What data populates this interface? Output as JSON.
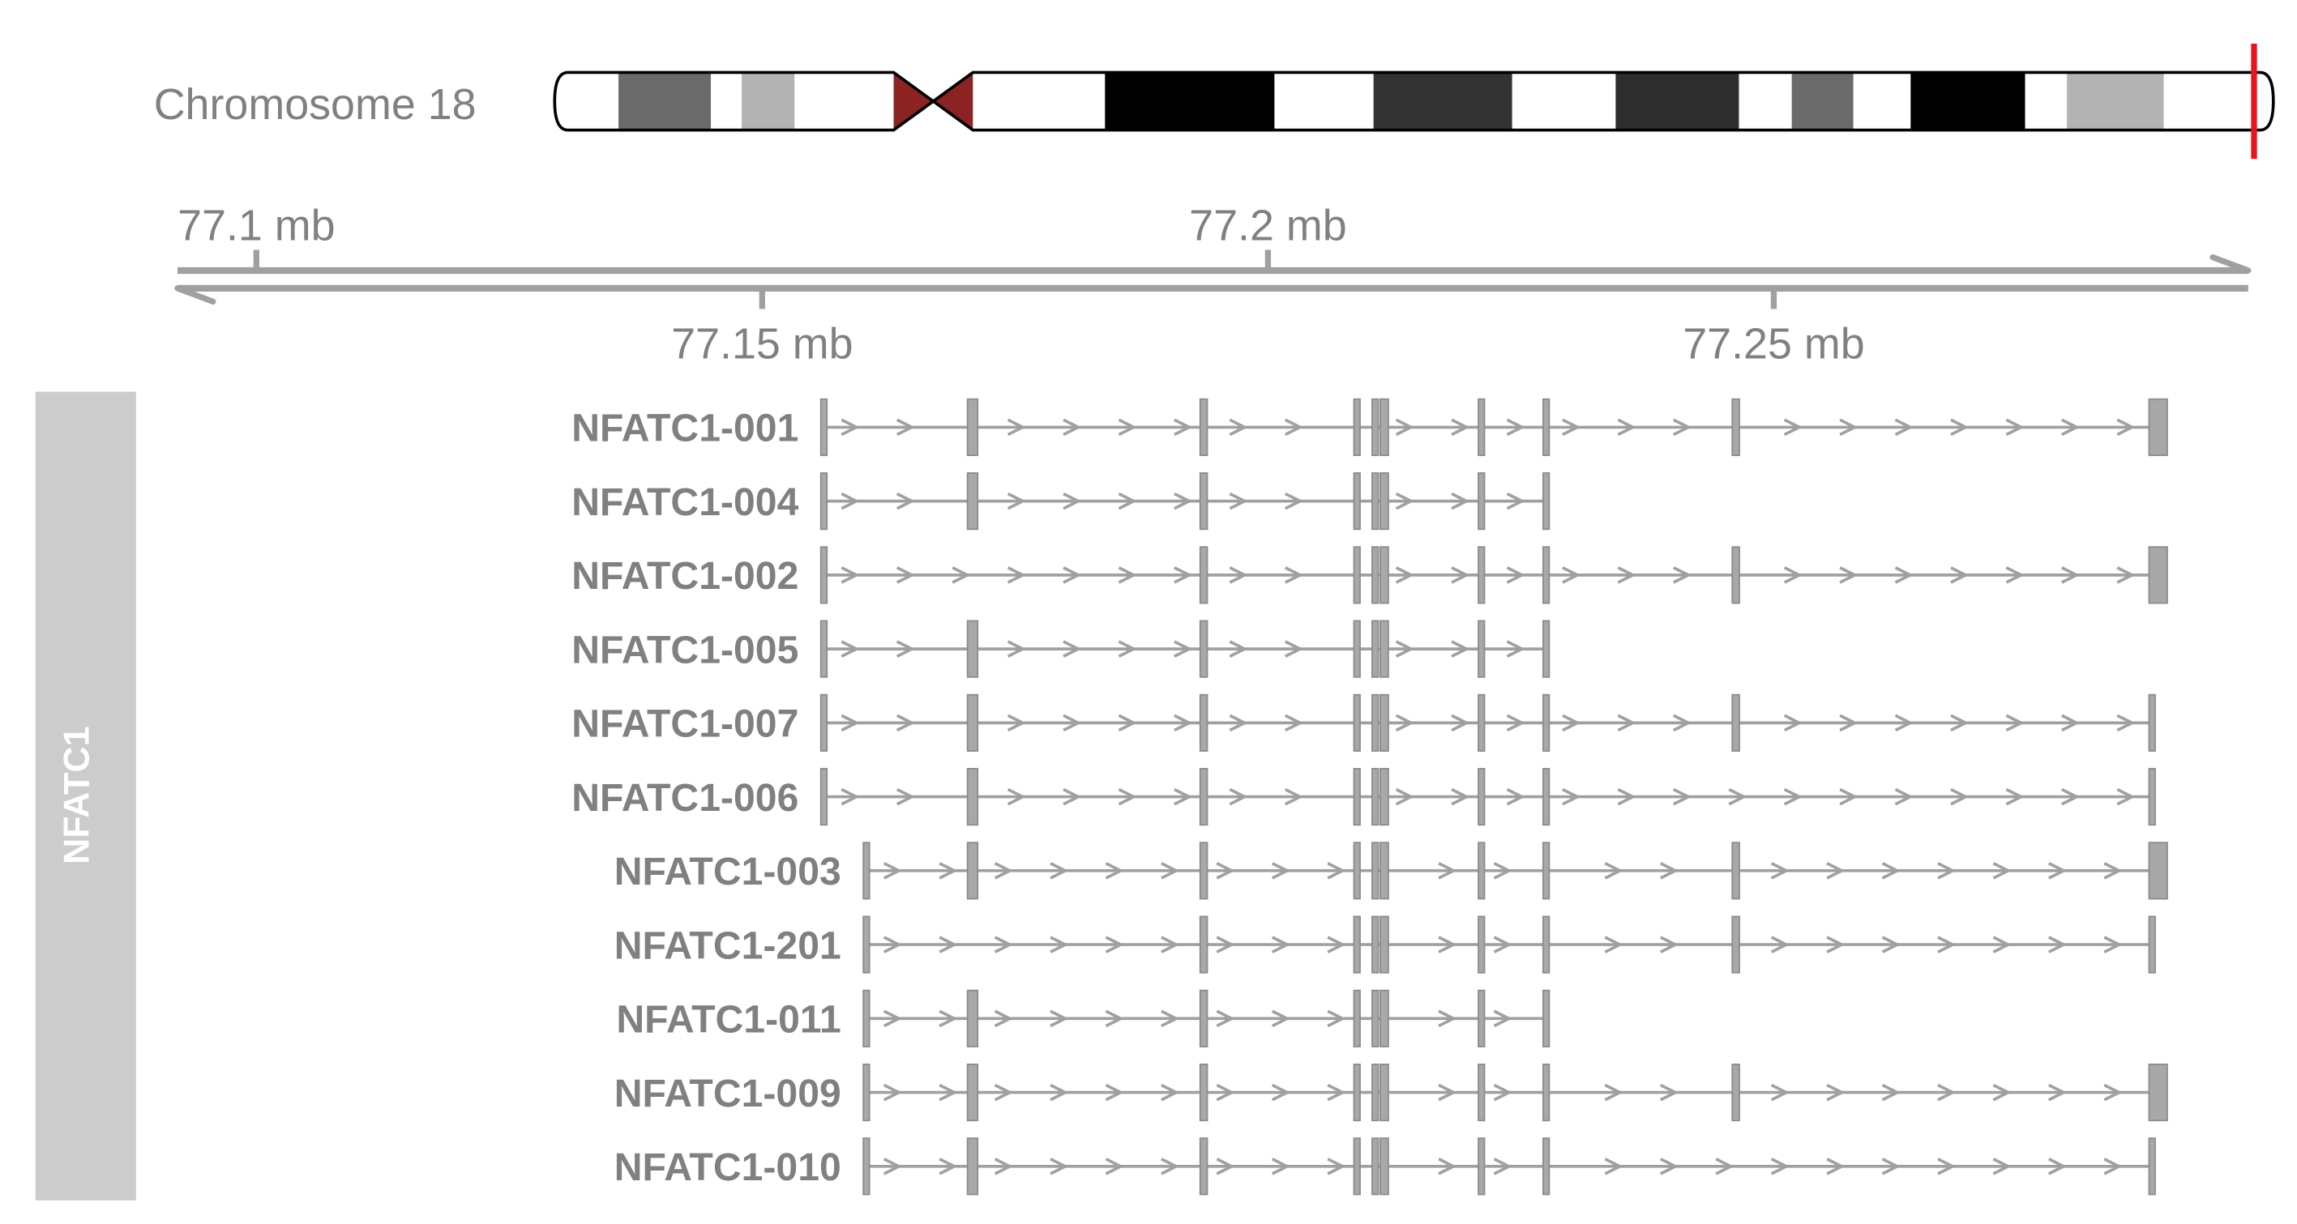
{
  "colors": {
    "text": "#808080",
    "axis": "#A0A0A0",
    "intron": "#A0A0A0",
    "exon_fill": "#A8A8A8",
    "exon_border": "#8C8C8C",
    "panel": "#CCCCCC",
    "panel_text": "#FFFFFF",
    "centromere": "#8B2323",
    "outline": "#000000",
    "highlight": "#E8161C"
  },
  "ideogram": {
    "label": "Chromosome 18",
    "length_mb": 78.077,
    "highlight_mb": 77.2,
    "bands": [
      {
        "start": 0,
        "end": 2.9,
        "fill": "#FFFFFF"
      },
      {
        "start": 2.9,
        "end": 7.1,
        "fill": "#6B6B6B"
      },
      {
        "start": 7.1,
        "end": 8.5,
        "fill": "#FFFFFF"
      },
      {
        "start": 8.5,
        "end": 10.9,
        "fill": "#B3B3B3"
      },
      {
        "start": 10.9,
        "end": 15.4,
        "fill": "#FFFFFF"
      },
      {
        "start": 15.4,
        "end": 17.2,
        "centromere": true
      },
      {
        "start": 17.2,
        "end": 19.0,
        "centromere": true
      },
      {
        "start": 19.0,
        "end": 25.0,
        "fill": "#FFFFFF"
      },
      {
        "start": 25.0,
        "end": 32.7,
        "fill": "#000000"
      },
      {
        "start": 32.7,
        "end": 37.2,
        "fill": "#FFFFFF"
      },
      {
        "start": 37.2,
        "end": 43.5,
        "fill": "#333333"
      },
      {
        "start": 43.5,
        "end": 48.2,
        "fill": "#FFFFFF"
      },
      {
        "start": 48.2,
        "end": 53.8,
        "fill": "#2E2E2E"
      },
      {
        "start": 53.8,
        "end": 56.2,
        "fill": "#FFFFFF"
      },
      {
        "start": 56.2,
        "end": 59.0,
        "fill": "#6B6B6B"
      },
      {
        "start": 59.0,
        "end": 61.6,
        "fill": "#FFFFFF"
      },
      {
        "start": 61.6,
        "end": 66.8,
        "fill": "#000000"
      },
      {
        "start": 66.8,
        "end": 68.7,
        "fill": "#FFFFFF"
      },
      {
        "start": 68.7,
        "end": 73.1,
        "fill": "#B3B3B3"
      },
      {
        "start": 73.1,
        "end": 78.077,
        "fill": "#FFFFFF"
      }
    ]
  },
  "axis": {
    "range_mb": [
      77.0922,
      77.2969
    ],
    "ticks_top": [
      {
        "value": 77.1,
        "label": "77.1 mb"
      },
      {
        "value": 77.2,
        "label": "77.2 mb"
      }
    ],
    "ticks_bottom": [
      {
        "value": 77.15,
        "label": "77.15 mb"
      },
      {
        "value": 77.25,
        "label": "77.25 mb"
      }
    ]
  },
  "gene_track": {
    "title": "NFATC1",
    "forward_strand": true,
    "transcripts": [
      {
        "label": "NFATC1-001",
        "exons": [
          [
            77.1558,
            77.1564
          ],
          [
            77.1703,
            77.1713
          ],
          [
            77.1933,
            77.194
          ],
          [
            77.2085,
            77.2091
          ],
          [
            77.2103,
            77.2109
          ],
          [
            77.2111,
            77.2119
          ],
          [
            77.2208,
            77.2214
          ],
          [
            77.2272,
            77.2278
          ],
          [
            77.2459,
            77.2466
          ],
          [
            77.2871,
            77.2889
          ]
        ]
      },
      {
        "label": "NFATC1-004",
        "exons": [
          [
            77.1558,
            77.1564
          ],
          [
            77.1703,
            77.1713
          ],
          [
            77.1933,
            77.194
          ],
          [
            77.2085,
            77.2091
          ],
          [
            77.2103,
            77.2109
          ],
          [
            77.2111,
            77.2119
          ],
          [
            77.2208,
            77.2214
          ],
          [
            77.2272,
            77.2278
          ]
        ]
      },
      {
        "label": "NFATC1-002",
        "exons": [
          [
            77.1558,
            77.1564
          ],
          [
            77.1933,
            77.194
          ],
          [
            77.2085,
            77.2091
          ],
          [
            77.2103,
            77.2109
          ],
          [
            77.2111,
            77.2119
          ],
          [
            77.2208,
            77.2214
          ],
          [
            77.2272,
            77.2278
          ],
          [
            77.2459,
            77.2466
          ],
          [
            77.2871,
            77.2889
          ]
        ]
      },
      {
        "label": "NFATC1-005",
        "exons": [
          [
            77.1558,
            77.1564
          ],
          [
            77.1703,
            77.1713
          ],
          [
            77.1933,
            77.194
          ],
          [
            77.2085,
            77.2091
          ],
          [
            77.2103,
            77.2109
          ],
          [
            77.2111,
            77.2119
          ],
          [
            77.2208,
            77.2214
          ],
          [
            77.2272,
            77.2278
          ]
        ]
      },
      {
        "label": "NFATC1-007",
        "exons": [
          [
            77.1558,
            77.1564
          ],
          [
            77.1703,
            77.1713
          ],
          [
            77.1933,
            77.194
          ],
          [
            77.2085,
            77.2091
          ],
          [
            77.2103,
            77.2109
          ],
          [
            77.2111,
            77.2119
          ],
          [
            77.2208,
            77.2214
          ],
          [
            77.2272,
            77.2278
          ],
          [
            77.2459,
            77.2466
          ],
          [
            77.2871,
            77.2877
          ]
        ]
      },
      {
        "label": "NFATC1-006",
        "exons": [
          [
            77.1558,
            77.1564
          ],
          [
            77.1703,
            77.1713
          ],
          [
            77.1933,
            77.194
          ],
          [
            77.2085,
            77.2091
          ],
          [
            77.2103,
            77.2109
          ],
          [
            77.2111,
            77.2119
          ],
          [
            77.2208,
            77.2214
          ],
          [
            77.2272,
            77.2278
          ],
          [
            77.2871,
            77.2877
          ]
        ]
      },
      {
        "label": "NFATC1-003",
        "exons": [
          [
            77.16,
            77.1606
          ],
          [
            77.1703,
            77.1713
          ],
          [
            77.1933,
            77.194
          ],
          [
            77.2085,
            77.2091
          ],
          [
            77.2103,
            77.2109
          ],
          [
            77.2111,
            77.2119
          ],
          [
            77.2208,
            77.2214
          ],
          [
            77.2272,
            77.2278
          ],
          [
            77.2459,
            77.2466
          ],
          [
            77.2871,
            77.2889
          ]
        ]
      },
      {
        "label": "NFATC1-201",
        "exons": [
          [
            77.16,
            77.1606
          ],
          [
            77.1933,
            77.194
          ],
          [
            77.2085,
            77.2091
          ],
          [
            77.2103,
            77.2109
          ],
          [
            77.2111,
            77.2119
          ],
          [
            77.2208,
            77.2214
          ],
          [
            77.2272,
            77.2278
          ],
          [
            77.2459,
            77.2466
          ],
          [
            77.2871,
            77.2877
          ]
        ]
      },
      {
        "label": "NFATC1-011",
        "exons": [
          [
            77.16,
            77.1606
          ],
          [
            77.1703,
            77.1713
          ],
          [
            77.1933,
            77.194
          ],
          [
            77.2085,
            77.2091
          ],
          [
            77.2103,
            77.2109
          ],
          [
            77.2111,
            77.2119
          ],
          [
            77.2208,
            77.2214
          ],
          [
            77.2272,
            77.2278
          ]
        ]
      },
      {
        "label": "NFATC1-009",
        "exons": [
          [
            77.16,
            77.1606
          ],
          [
            77.1703,
            77.1713
          ],
          [
            77.1933,
            77.194
          ],
          [
            77.2085,
            77.2091
          ],
          [
            77.2103,
            77.2109
          ],
          [
            77.2111,
            77.2119
          ],
          [
            77.2208,
            77.2214
          ],
          [
            77.2272,
            77.2278
          ],
          [
            77.2459,
            77.2466
          ],
          [
            77.2871,
            77.2889
          ]
        ]
      },
      {
        "label": "NFATC1-010",
        "exons": [
          [
            77.16,
            77.1606
          ],
          [
            77.1703,
            77.1713
          ],
          [
            77.1933,
            77.194
          ],
          [
            77.2085,
            77.2091
          ],
          [
            77.2103,
            77.2109
          ],
          [
            77.2111,
            77.2119
          ],
          [
            77.2208,
            77.2214
          ],
          [
            77.2272,
            77.2278
          ],
          [
            77.2871,
            77.2877
          ]
        ]
      }
    ]
  }
}
